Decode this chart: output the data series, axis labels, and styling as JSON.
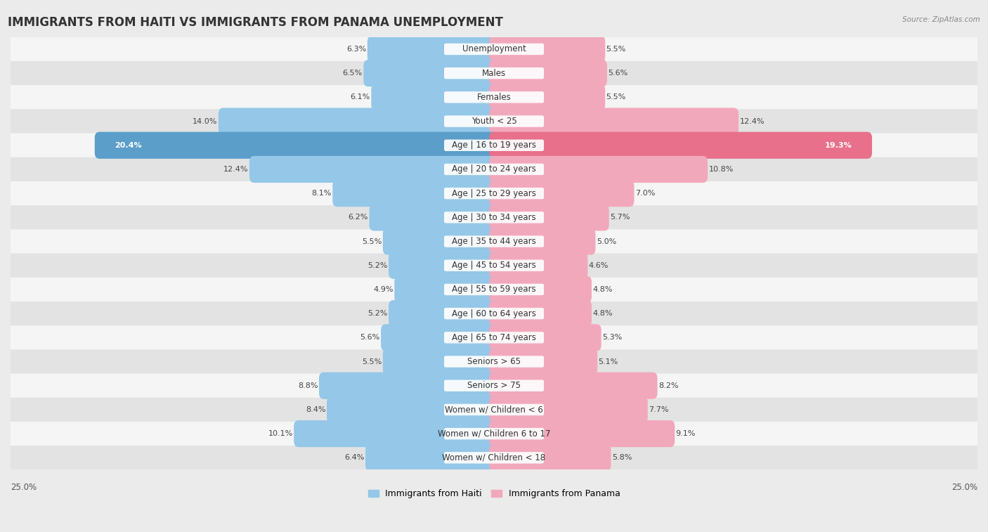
{
  "title": "IMMIGRANTS FROM HAITI VS IMMIGRANTS FROM PANAMA UNEMPLOYMENT",
  "source": "Source: ZipAtlas.com",
  "categories": [
    "Unemployment",
    "Males",
    "Females",
    "Youth < 25",
    "Age | 16 to 19 years",
    "Age | 20 to 24 years",
    "Age | 25 to 29 years",
    "Age | 30 to 34 years",
    "Age | 35 to 44 years",
    "Age | 45 to 54 years",
    "Age | 55 to 59 years",
    "Age | 60 to 64 years",
    "Age | 65 to 74 years",
    "Seniors > 65",
    "Seniors > 75",
    "Women w/ Children < 6",
    "Women w/ Children 6 to 17",
    "Women w/ Children < 18"
  ],
  "haiti_values": [
    6.3,
    6.5,
    6.1,
    14.0,
    20.4,
    12.4,
    8.1,
    6.2,
    5.5,
    5.2,
    4.9,
    5.2,
    5.6,
    5.5,
    8.8,
    8.4,
    10.1,
    6.4
  ],
  "panama_values": [
    5.5,
    5.6,
    5.5,
    12.4,
    19.3,
    10.8,
    7.0,
    5.7,
    5.0,
    4.6,
    4.8,
    4.8,
    5.3,
    5.1,
    8.2,
    7.7,
    9.1,
    5.8
  ],
  "haiti_color": "#94C7E8",
  "panama_color": "#F2A8BB",
  "haiti_highlight_color": "#5B9EC9",
  "panama_highlight_color": "#E8708A",
  "haiti_label": "Immigrants from Haiti",
  "panama_label": "Immigrants from Panama",
  "axis_max": 25.0,
  "background_color": "#EBEBEB",
  "row_color_odd": "#F5F5F5",
  "row_color_even": "#E3E3E3",
  "title_fontsize": 12,
  "label_fontsize": 8.5,
  "value_fontsize": 8,
  "source_fontsize": 7.5
}
